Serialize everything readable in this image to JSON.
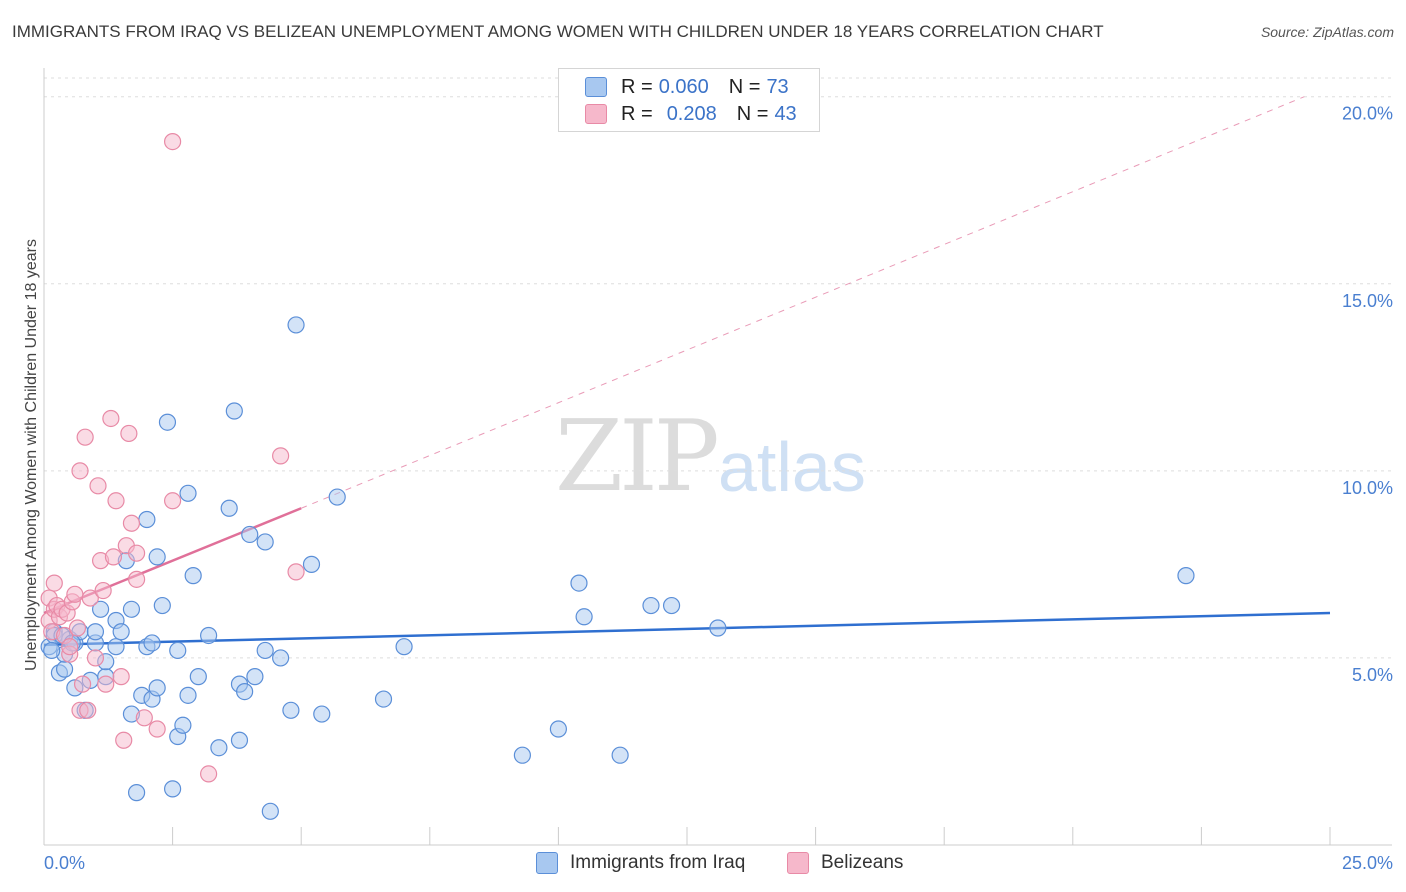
{
  "header": {
    "title": "IMMIGRANTS FROM IRAQ VS BELIZEAN UNEMPLOYMENT AMONG WOMEN WITH CHILDREN UNDER 18 YEARS CORRELATION CHART",
    "source": "Source: ZipAtlas.com"
  },
  "watermark": {
    "zip": "ZIP",
    "atlas": "atlas"
  },
  "legend": {
    "rows": [
      {
        "r_label": "R =",
        "r_value": "0.060",
        "n_label": "N =",
        "n_value": "73",
        "color": "#a8c8f0"
      },
      {
        "r_label": "R =",
        "r_value": "0.208",
        "n_label": "N =",
        "n_value": "43",
        "color": "#f6b8cb"
      }
    ]
  },
  "bottom_legend": {
    "series1": "Immigrants from Iraq",
    "series2": "Belizeans"
  },
  "colors": {
    "series1_fill": "#a8c8f0",
    "series1_stroke": "#5b8fd8",
    "series1_line": "#2f6fd0",
    "series2_fill": "#f6b8cb",
    "series2_stroke": "#e88aa6",
    "series2_line": "#e07099",
    "grid": "#dddddd",
    "tick_text": "#4a7fd0"
  },
  "chart_data": {
    "type": "scatter",
    "title": "IMMIGRANTS FROM IRAQ VS BELIZEAN UNEMPLOYMENT AMONG WOMEN WITH CHILDREN UNDER 18 YEARS CORRELATION CHART",
    "xlabel": "",
    "ylabel": "Unemployment Among Women with Children Under 18 years",
    "xlim": [
      0,
      25
    ],
    "ylim": [
      0,
      20.5
    ],
    "x_tick_labels": [
      "0.0%",
      "25.0%"
    ],
    "y_ticks": [
      5,
      10,
      15,
      20
    ],
    "y_tick_labels": [
      "5.0%",
      "10.0%",
      "15.0%",
      "20.0%"
    ],
    "grid": true,
    "series": [
      {
        "name": "Immigrants from Iraq",
        "r": 0.06,
        "n": 73,
        "trend": {
          "x": [
            0,
            25
          ],
          "y": [
            5.35,
            6.2
          ],
          "style": "solid"
        },
        "points": [
          [
            0.1,
            5.3
          ],
          [
            0.2,
            5.7
          ],
          [
            0.2,
            5.6
          ],
          [
            0.3,
            4.6
          ],
          [
            0.4,
            4.7
          ],
          [
            0.4,
            5.1
          ],
          [
            0.5,
            5.5
          ],
          [
            0.6,
            4.2
          ],
          [
            0.6,
            5.4
          ],
          [
            0.7,
            5.7
          ],
          [
            0.8,
            3.6
          ],
          [
            0.9,
            4.4
          ],
          [
            1.0,
            5.4
          ],
          [
            1.0,
            5.7
          ],
          [
            1.1,
            6.3
          ],
          [
            1.2,
            4.5
          ],
          [
            1.2,
            4.9
          ],
          [
            1.4,
            5.3
          ],
          [
            1.4,
            6.0
          ],
          [
            1.5,
            5.7
          ],
          [
            1.6,
            7.6
          ],
          [
            1.7,
            6.3
          ],
          [
            1.7,
            3.5
          ],
          [
            1.8,
            1.4
          ],
          [
            1.9,
            4.0
          ],
          [
            2.0,
            5.3
          ],
          [
            2.0,
            8.7
          ],
          [
            2.1,
            5.4
          ],
          [
            2.1,
            3.9
          ],
          [
            2.2,
            7.7
          ],
          [
            2.2,
            4.2
          ],
          [
            2.3,
            6.4
          ],
          [
            2.4,
            11.3
          ],
          [
            2.5,
            1.5
          ],
          [
            2.6,
            2.9
          ],
          [
            2.6,
            5.2
          ],
          [
            2.7,
            3.2
          ],
          [
            2.8,
            4.0
          ],
          [
            2.8,
            9.4
          ],
          [
            2.9,
            7.2
          ],
          [
            3.0,
            4.5
          ],
          [
            3.2,
            5.6
          ],
          [
            3.4,
            2.6
          ],
          [
            3.6,
            9.0
          ],
          [
            3.7,
            11.6
          ],
          [
            3.8,
            2.8
          ],
          [
            3.8,
            4.3
          ],
          [
            3.9,
            4.1
          ],
          [
            4.0,
            8.3
          ],
          [
            4.1,
            4.5
          ],
          [
            4.3,
            8.1
          ],
          [
            4.3,
            5.2
          ],
          [
            4.4,
            0.9
          ],
          [
            4.6,
            5.0
          ],
          [
            4.8,
            3.6
          ],
          [
            4.9,
            13.9
          ],
          [
            5.2,
            7.5
          ],
          [
            5.4,
            3.5
          ],
          [
            5.7,
            9.3
          ],
          [
            6.6,
            3.9
          ],
          [
            7.0,
            5.3
          ],
          [
            9.3,
            2.4
          ],
          [
            10.0,
            3.1
          ],
          [
            10.4,
            7.0
          ],
          [
            10.5,
            6.1
          ],
          [
            11.2,
            2.4
          ],
          [
            11.8,
            6.4
          ],
          [
            12.2,
            6.4
          ],
          [
            13.1,
            5.8
          ],
          [
            22.2,
            7.2
          ],
          [
            0.15,
            5.2
          ],
          [
            0.35,
            5.6
          ],
          [
            0.55,
            5.4
          ]
        ]
      },
      {
        "name": "Belizeans",
        "r": 0.208,
        "n": 43,
        "trend": {
          "x": [
            0,
            5
          ],
          "y": [
            6.2,
            9.0
          ],
          "style": "solid",
          "extension": {
            "x": [
              5,
              24.5
            ],
            "y": [
              9.0,
              20.0
            ],
            "style": "dashed"
          }
        },
        "points": [
          [
            0.1,
            6.6
          ],
          [
            0.1,
            6.0
          ],
          [
            0.15,
            5.7
          ],
          [
            0.2,
            6.3
          ],
          [
            0.2,
            7.0
          ],
          [
            0.25,
            6.4
          ],
          [
            0.3,
            6.1
          ],
          [
            0.35,
            6.3
          ],
          [
            0.4,
            5.6
          ],
          [
            0.45,
            6.2
          ],
          [
            0.5,
            5.1
          ],
          [
            0.5,
            5.3
          ],
          [
            0.55,
            6.5
          ],
          [
            0.6,
            6.7
          ],
          [
            0.65,
            5.8
          ],
          [
            0.7,
            3.6
          ],
          [
            0.7,
            10.0
          ],
          [
            0.75,
            4.3
          ],
          [
            0.8,
            10.9
          ],
          [
            0.85,
            3.6
          ],
          [
            0.9,
            6.6
          ],
          [
            1.0,
            5.0
          ],
          [
            1.05,
            9.6
          ],
          [
            1.1,
            7.6
          ],
          [
            1.15,
            6.8
          ],
          [
            1.2,
            4.3
          ],
          [
            1.3,
            11.4
          ],
          [
            1.35,
            7.7
          ],
          [
            1.4,
            9.2
          ],
          [
            1.5,
            4.5
          ],
          [
            1.55,
            2.8
          ],
          [
            1.6,
            8.0
          ],
          [
            1.65,
            11.0
          ],
          [
            1.7,
            8.6
          ],
          [
            1.8,
            7.8
          ],
          [
            1.8,
            7.1
          ],
          [
            1.95,
            3.4
          ],
          [
            2.2,
            3.1
          ],
          [
            2.5,
            9.2
          ],
          [
            2.5,
            18.8
          ],
          [
            3.2,
            1.9
          ],
          [
            4.6,
            10.4
          ],
          [
            4.9,
            7.3
          ]
        ]
      }
    ]
  }
}
